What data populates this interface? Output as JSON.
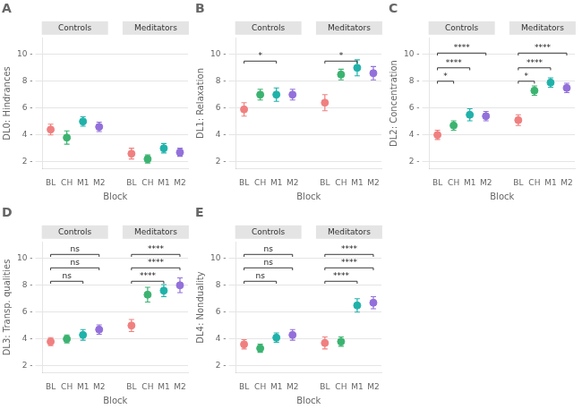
{
  "chart_data": [
    {
      "type": "scatter",
      "title": "A",
      "x_label": "Block",
      "y_label": "DL0: Hindrances",
      "ylim": [
        1.5,
        11.2
      ],
      "yticks": [
        {
          "value": 2,
          "label": "2 -"
        },
        {
          "value": 4,
          "label": "4 -"
        },
        {
          "value": 6,
          "label": "6 -"
        },
        {
          "value": 8,
          "label": "8 -"
        },
        {
          "value": 10,
          "label": "10 -"
        }
      ],
      "grid": true,
      "facets": [
        {
          "name": "Controls",
          "categories": [
            "BL",
            "CH",
            "M1",
            "M2"
          ],
          "colors": [
            "#F08080",
            "#3CB371",
            "#20B2AA",
            "#9370DB"
          ],
          "values": [
            4.4,
            3.8,
            5.0,
            4.6
          ],
          "errors": [
            0.4,
            0.5,
            0.35,
            0.35
          ]
        },
        {
          "name": "Meditators",
          "categories": [
            "BL",
            "CH",
            "M1",
            "M2"
          ],
          "colors": [
            "#F08080",
            "#3CB371",
            "#20B2AA",
            "#9370DB"
          ],
          "values": [
            2.6,
            2.2,
            3.0,
            2.7
          ],
          "errors": [
            0.4,
            0.3,
            0.35,
            0.3
          ]
        }
      ]
    },
    {
      "type": "scatter",
      "title": "B",
      "x_label": "Block",
      "y_label": "DL1: Relaxation",
      "ylim": [
        1.5,
        11.2
      ],
      "yticks": [
        {
          "value": 2,
          "label": "2 -"
        },
        {
          "value": 4,
          "label": "4 -"
        },
        {
          "value": 6,
          "label": "6 -"
        },
        {
          "value": 8,
          "label": "8 -"
        },
        {
          "value": 10,
          "label": "10 -"
        }
      ],
      "grid": true,
      "facets": [
        {
          "name": "Controls",
          "categories": [
            "BL",
            "CH",
            "M1",
            "M2"
          ],
          "colors": [
            "#F08080",
            "#3CB371",
            "#20B2AA",
            "#9370DB"
          ],
          "values": [
            5.9,
            7.0,
            7.0,
            7.0
          ],
          "errors": [
            0.5,
            0.4,
            0.5,
            0.4
          ],
          "annotations": [
            {
              "x1": "BL",
              "x2": "M1",
              "y": 9.5,
              "text": "*"
            }
          ]
        },
        {
          "name": "Meditators",
          "categories": [
            "BL",
            "CH",
            "M1",
            "M2"
          ],
          "colors": [
            "#F08080",
            "#3CB371",
            "#20B2AA",
            "#9370DB"
          ],
          "values": [
            6.4,
            8.5,
            9.0,
            8.6
          ],
          "errors": [
            0.6,
            0.4,
            0.6,
            0.5
          ],
          "annotations": [
            {
              "x1": "BL",
              "x2": "M1",
              "y": 9.5,
              "text": "*"
            }
          ]
        }
      ]
    },
    {
      "type": "scatter",
      "title": "C",
      "x_label": "Block",
      "y_label": "DL2: Concentration",
      "ylim": [
        1.5,
        11.2
      ],
      "yticks": [
        {
          "value": 2,
          "label": "2 -"
        },
        {
          "value": 4,
          "label": "4 -"
        },
        {
          "value": 6,
          "label": "6 -"
        },
        {
          "value": 8,
          "label": "8 -"
        },
        {
          "value": 10,
          "label": "10 -"
        }
      ],
      "grid": true,
      "facets": [
        {
          "name": "Controls",
          "categories": [
            "BL",
            "CH",
            "M1",
            "M2"
          ],
          "colors": [
            "#F08080",
            "#3CB371",
            "#20B2AA",
            "#9370DB"
          ],
          "values": [
            4.0,
            4.7,
            5.5,
            5.4
          ],
          "errors": [
            0.35,
            0.35,
            0.45,
            0.35
          ],
          "annotations": [
            {
              "x1": "BL",
              "x2": "CH",
              "y": 8.0,
              "text": "*"
            },
            {
              "x1": "BL",
              "x2": "M1",
              "y": 9.0,
              "text": "****"
            },
            {
              "x1": "BL",
              "x2": "M2",
              "y": 10.1,
              "text": "****"
            }
          ]
        },
        {
          "name": "Meditators",
          "categories": [
            "BL",
            "CH",
            "M1",
            "M2"
          ],
          "colors": [
            "#F08080",
            "#3CB371",
            "#20B2AA",
            "#9370DB"
          ],
          "values": [
            5.1,
            7.3,
            7.9,
            7.5
          ],
          "errors": [
            0.4,
            0.35,
            0.35,
            0.35
          ],
          "annotations": [
            {
              "x1": "BL",
              "x2": "CH",
              "y": 8.0,
              "text": "*"
            },
            {
              "x1": "BL",
              "x2": "M1",
              "y": 9.0,
              "text": "****"
            },
            {
              "x1": "BL",
              "x2": "M2",
              "y": 10.1,
              "text": "****"
            }
          ]
        }
      ]
    },
    {
      "type": "scatter",
      "title": "D",
      "x_label": "Block",
      "y_label": "DL3: Transp. qualities",
      "ylim": [
        1.5,
        11.2
      ],
      "yticks": [
        {
          "value": 2,
          "label": "2 -"
        },
        {
          "value": 4,
          "label": "4 -"
        },
        {
          "value": 6,
          "label": "6 -"
        },
        {
          "value": 8,
          "label": "8 -"
        },
        {
          "value": 10,
          "label": "10 -"
        }
      ],
      "grid": true,
      "facets": [
        {
          "name": "Controls",
          "categories": [
            "BL",
            "CH",
            "M1",
            "M2"
          ],
          "colors": [
            "#F08080",
            "#3CB371",
            "#20B2AA",
            "#9370DB"
          ],
          "values": [
            3.8,
            4.0,
            4.3,
            4.7
          ],
          "errors": [
            0.3,
            0.3,
            0.4,
            0.35
          ],
          "annotations": [
            {
              "x1": "BL",
              "x2": "M1",
              "y": 8.3,
              "text": "ns"
            },
            {
              "x1": "BL",
              "x2": "M2",
              "y": 9.3,
              "text": "ns"
            },
            {
              "x1": "BL",
              "x2": "M2",
              "y": 10.3,
              "text": "ns"
            }
          ]
        },
        {
          "name": "Meditators",
          "categories": [
            "BL",
            "CH",
            "M1",
            "M2"
          ],
          "colors": [
            "#F08080",
            "#3CB371",
            "#20B2AA",
            "#9370DB"
          ],
          "values": [
            5.0,
            7.3,
            7.6,
            8.0
          ],
          "errors": [
            0.45,
            0.55,
            0.45,
            0.55
          ],
          "annotations": [
            {
              "x1": "BL",
              "x2": "M1",
              "y": 8.3,
              "text": "****"
            },
            {
              "x1": "BL",
              "x2": "M2",
              "y": 9.3,
              "text": "****"
            },
            {
              "x1": "BL",
              "x2": "M2",
              "y": 10.3,
              "text": "****"
            }
          ]
        }
      ]
    },
    {
      "type": "scatter",
      "title": "E",
      "x_label": "Block",
      "y_label": "DL4: Nonduality",
      "ylim": [
        1.5,
        11.2
      ],
      "yticks": [
        {
          "value": 2,
          "label": "2 -"
        },
        {
          "value": 4,
          "label": "4 -"
        },
        {
          "value": 6,
          "label": "6 -"
        },
        {
          "value": 8,
          "label": "8 -"
        },
        {
          "value": 10,
          "label": "10 -"
        }
      ],
      "grid": true,
      "facets": [
        {
          "name": "Controls",
          "categories": [
            "BL",
            "CH",
            "M1",
            "M2"
          ],
          "colors": [
            "#F08080",
            "#3CB371",
            "#20B2AA",
            "#9370DB"
          ],
          "values": [
            3.6,
            3.3,
            4.1,
            4.3
          ],
          "errors": [
            0.35,
            0.3,
            0.35,
            0.4
          ],
          "annotations": [
            {
              "x1": "BL",
              "x2": "M1",
              "y": 8.3,
              "text": "ns"
            },
            {
              "x1": "BL",
              "x2": "M2",
              "y": 9.3,
              "text": "ns"
            },
            {
              "x1": "BL",
              "x2": "M2",
              "y": 10.3,
              "text": "ns"
            }
          ]
        },
        {
          "name": "Meditators",
          "categories": [
            "BL",
            "CH",
            "M1",
            "M2"
          ],
          "colors": [
            "#F08080",
            "#3CB371",
            "#20B2AA",
            "#9370DB"
          ],
          "values": [
            3.7,
            3.8,
            6.5,
            6.7
          ],
          "errors": [
            0.45,
            0.35,
            0.5,
            0.45
          ],
          "annotations": [
            {
              "x1": "BL",
              "x2": "M1",
              "y": 8.3,
              "text": "****"
            },
            {
              "x1": "BL",
              "x2": "M2",
              "y": 9.3,
              "text": "****"
            },
            {
              "x1": "BL",
              "x2": "M2",
              "y": 10.3,
              "text": "****"
            }
          ]
        }
      ]
    }
  ]
}
